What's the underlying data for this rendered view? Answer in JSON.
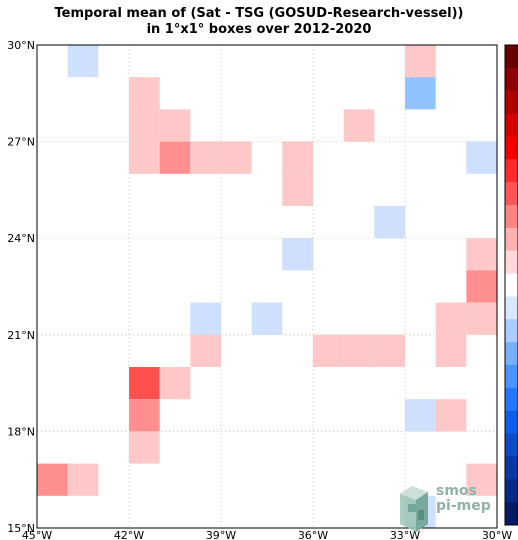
{
  "title": {
    "line1": "Temporal mean of (Sat - TSG (GOSUD-Research-vessel))",
    "line2": "in 1°x1° boxes over 2012-2020"
  },
  "logo": {
    "line1": "smos",
    "line2": "pi-mep"
  },
  "axes": {
    "lon_range": [
      -45,
      -30
    ],
    "lat_range": [
      15,
      30
    ],
    "x_ticks": [
      {
        "value": -45,
        "label": "45°W"
      },
      {
        "value": -42,
        "label": "42°W"
      },
      {
        "value": -39,
        "label": "39°W"
      },
      {
        "value": -36,
        "label": "36°W"
      },
      {
        "value": -33,
        "label": "33°W"
      },
      {
        "value": -30,
        "label": "30°W"
      }
    ],
    "y_ticks": [
      {
        "value": 15,
        "label": "15°N"
      },
      {
        "value": 18,
        "label": "18°N"
      },
      {
        "value": 21,
        "label": "21°N"
      },
      {
        "value": 24,
        "label": "24°N"
      },
      {
        "value": 27,
        "label": "27°N"
      },
      {
        "value": 30,
        "label": "30°N"
      }
    ],
    "grid": true
  },
  "colorbar": {
    "colors": [
      "#6b0000",
      "#8f0000",
      "#b00000",
      "#d40000",
      "#f20000",
      "#ff2a2a",
      "#ff5555",
      "#ff8585",
      "#ffb0b0",
      "#ffd9d9",
      "#ffffff",
      "#d9e8ff",
      "#aaccff",
      "#78b0ff",
      "#4a94ff",
      "#2277ff",
      "#0a5ee8",
      "#0a4cc8",
      "#0838a6",
      "#072a86",
      "#051b66"
    ]
  },
  "cells": [
    {
      "lon": -44,
      "lat": 29,
      "color": "#cfe0ff"
    },
    {
      "lon": -42,
      "lat": 28,
      "color": "#ffc8c8"
    },
    {
      "lon": -42,
      "lat": 27,
      "color": "#ffc8c8"
    },
    {
      "lon": -41,
      "lat": 27,
      "color": "#ffc8c8"
    },
    {
      "lon": -42,
      "lat": 26,
      "color": "#ffc8c8"
    },
    {
      "lon": -41,
      "lat": 26,
      "color": "#ff8f8f"
    },
    {
      "lon": -40,
      "lat": 26,
      "color": "#ffc8c8"
    },
    {
      "lon": -39,
      "lat": 26,
      "color": "#ffc8c8"
    },
    {
      "lon": -37,
      "lat": 26,
      "color": "#ffc8c8"
    },
    {
      "lon": -37,
      "lat": 25,
      "color": "#ffc8c8"
    },
    {
      "lon": -35,
      "lat": 27,
      "color": "#ffc8c8"
    },
    {
      "lon": -33,
      "lat": 29,
      "color": "#ffc8c8"
    },
    {
      "lon": -33,
      "lat": 28,
      "color": "#8fc2ff"
    },
    {
      "lon": -31,
      "lat": 26,
      "color": "#cfe0ff"
    },
    {
      "lon": -34,
      "lat": 24,
      "color": "#cfe0ff"
    },
    {
      "lon": -37,
      "lat": 23,
      "color": "#cfe0ff"
    },
    {
      "lon": -31,
      "lat": 23,
      "color": "#ffc8c8"
    },
    {
      "lon": -31,
      "lat": 22,
      "color": "#ff8f8f"
    },
    {
      "lon": -32,
      "lat": 21,
      "color": "#ffc8c8"
    },
    {
      "lon": -31,
      "lat": 21,
      "color": "#ffc8c8"
    },
    {
      "lon": -32,
      "lat": 20,
      "color": "#ffc8c8"
    },
    {
      "lon": -40,
      "lat": 21,
      "color": "#cfe0ff"
    },
    {
      "lon": -38,
      "lat": 21,
      "color": "#cfe0ff"
    },
    {
      "lon": -40,
      "lat": 20,
      "color": "#ffc8c8"
    },
    {
      "lon": -36,
      "lat": 20,
      "color": "#ffc8c8"
    },
    {
      "lon": -35,
      "lat": 20,
      "color": "#ffc8c8"
    },
    {
      "lon": -34,
      "lat": 20,
      "color": "#ffc8c8"
    },
    {
      "lon": -42,
      "lat": 19,
      "color": "#ff4f4f"
    },
    {
      "lon": -41,
      "lat": 19,
      "color": "#ffc8c8"
    },
    {
      "lon": -42,
      "lat": 18,
      "color": "#ff8f8f"
    },
    {
      "lon": -42,
      "lat": 17,
      "color": "#ffc8c8"
    },
    {
      "lon": -33,
      "lat": 18,
      "color": "#cfe0ff"
    },
    {
      "lon": -32,
      "lat": 18,
      "color": "#ffc8c8"
    },
    {
      "lon": -31,
      "lat": 16,
      "color": "#ffc8c8"
    },
    {
      "lon": -45,
      "lat": 16,
      "color": "#ff8f8f"
    },
    {
      "lon": -44,
      "lat": 16,
      "color": "#ffc8c8"
    },
    {
      "lon": -33,
      "lat": 15,
      "color": "#cfe0ff"
    }
  ]
}
